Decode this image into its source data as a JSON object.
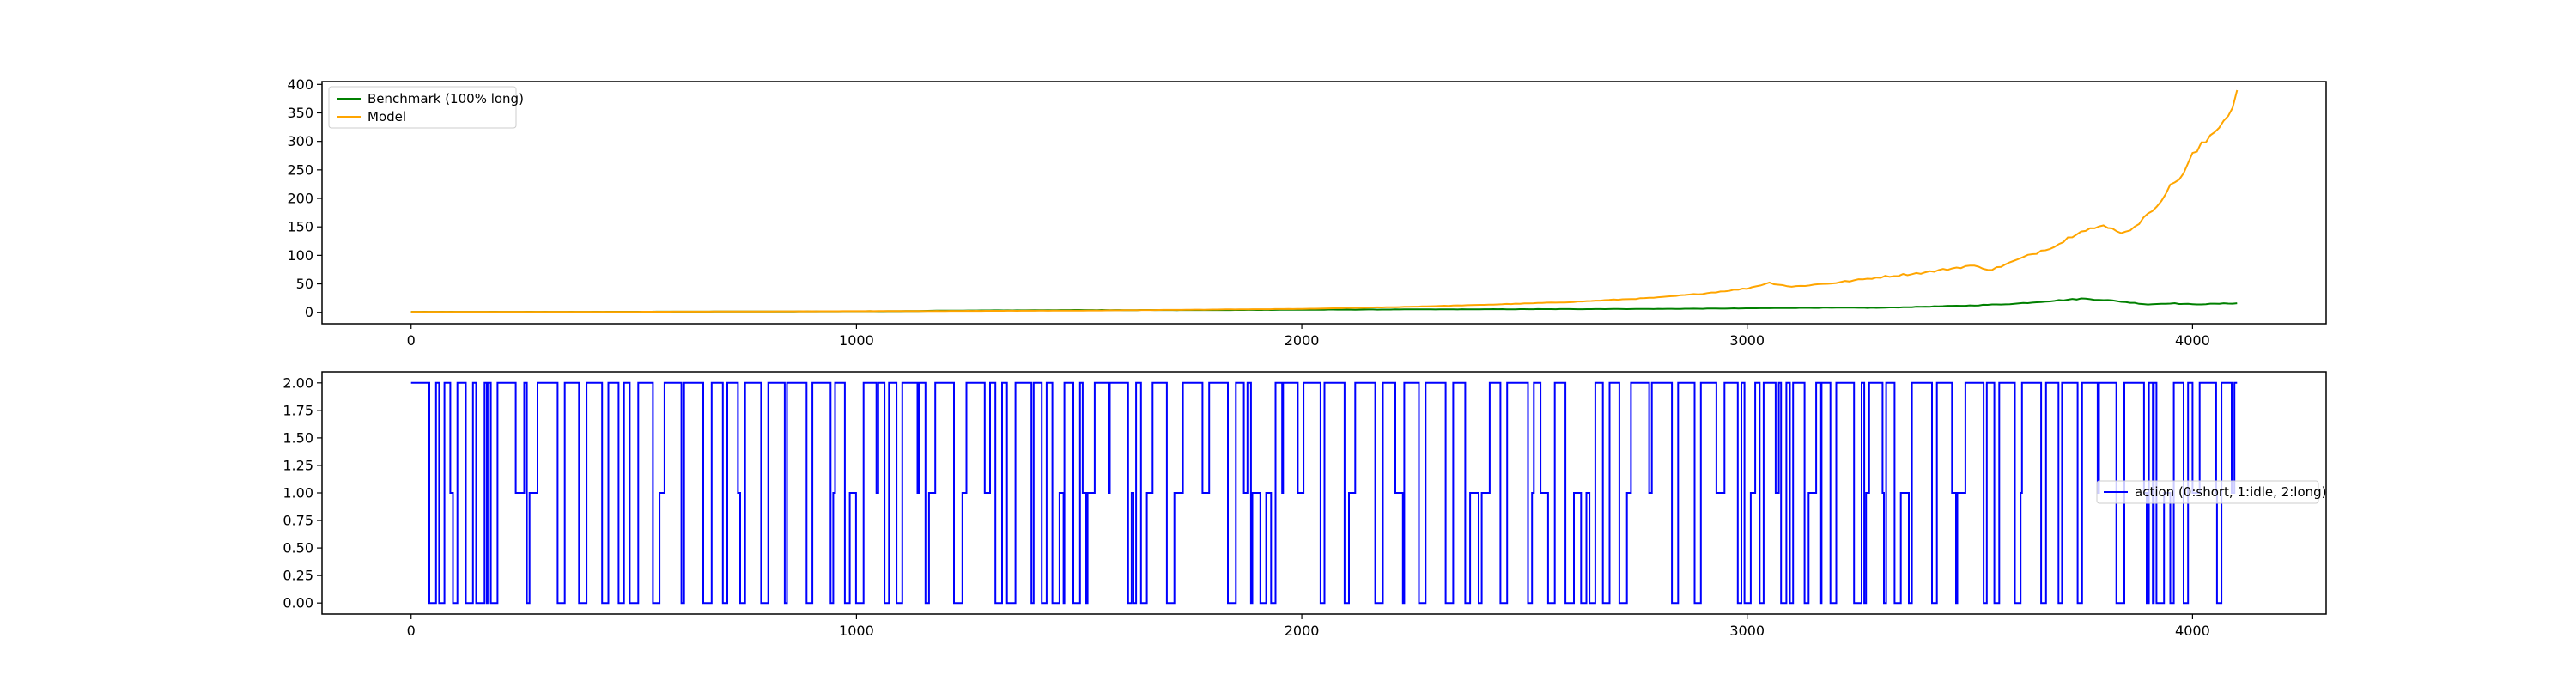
{
  "chart_data": [
    {
      "type": "line",
      "title": "",
      "xlabel": "",
      "ylabel": "",
      "xlim": [
        -200,
        4300
      ],
      "ylim": [
        -20,
        405
      ],
      "x_ticks": [
        0,
        1000,
        2000,
        3000,
        4000
      ],
      "y_ticks": [
        0,
        50,
        100,
        150,
        200,
        250,
        300,
        350,
        400
      ],
      "grid": false,
      "legend": "top-left",
      "series": [
        {
          "name": "Benchmark (100% long)",
          "color": "#008000",
          "x": [
            0,
            400,
            800,
            1100,
            1200,
            1500,
            1800,
            2000,
            2200,
            2500,
            2800,
            3000,
            3150,
            3300,
            3400,
            3500,
            3600,
            3700,
            3750,
            3800,
            3850,
            3900,
            3950,
            4000,
            4050,
            4100
          ],
          "values": [
            1,
            1,
            1.5,
            2,
            3,
            4,
            4,
            4.5,
            5,
            5.5,
            6,
            7,
            8,
            8,
            10,
            12,
            15,
            21,
            24,
            22,
            18,
            14,
            16,
            14,
            15,
            16
          ]
        },
        {
          "name": "Model",
          "color": "#ffa500",
          "x": [
            0,
            500,
            1000,
            1500,
            2000,
            2200,
            2400,
            2600,
            2800,
            2900,
            3000,
            3050,
            3100,
            3200,
            3300,
            3400,
            3500,
            3550,
            3600,
            3650,
            3700,
            3750,
            3800,
            3850,
            3900,
            3950,
            3980,
            4000,
            4030,
            4060,
            4080,
            4100
          ],
          "values": [
            1,
            1,
            2,
            3,
            6,
            9,
            13,
            18,
            26,
            33,
            42,
            52,
            45,
            52,
            62,
            70,
            82,
            75,
            90,
            105,
            120,
            145,
            150,
            140,
            170,
            220,
            245,
            275,
            300,
            330,
            345,
            390
          ]
        }
      ]
    },
    {
      "type": "line",
      "title": "",
      "xlabel": "",
      "ylabel": "",
      "xlim": [
        -200,
        4300
      ],
      "ylim": [
        -0.1,
        2.1
      ],
      "x_ticks": [
        0,
        1000,
        2000,
        3000,
        4000
      ],
      "y_ticks": [
        "0.00",
        "0.25",
        "0.50",
        "0.75",
        "1.00",
        "1.25",
        "1.50",
        "1.75",
        "2.00"
      ],
      "grid": false,
      "legend": "center-right",
      "step": true,
      "series": [
        {
          "name": "action (0:short, 1:idle, 2:long)",
          "color": "#0000ff",
          "x_max": 4100,
          "values": [
            2
          ]
        }
      ]
    }
  ]
}
